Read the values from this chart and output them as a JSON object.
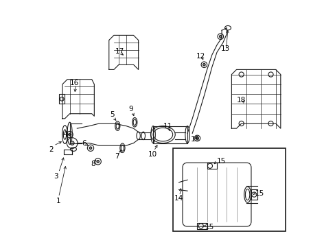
{
  "title": "",
  "bg_color": "#ffffff",
  "line_color": "#1a1a1a",
  "label_color": "#000000",
  "figsize": [
    4.89,
    3.6
  ],
  "dpi": 100
}
